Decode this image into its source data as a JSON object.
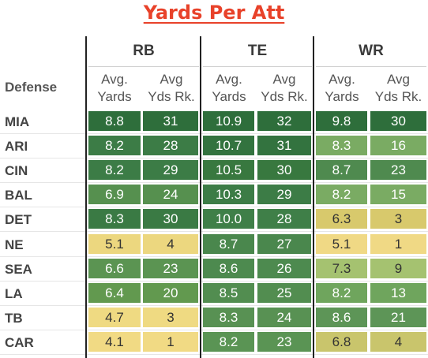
{
  "title": "Yards Per Att",
  "header": {
    "defense_label": "Defense",
    "groups": [
      "RB",
      "TE",
      "WR"
    ],
    "sub_top": [
      "Avg.",
      "Avg",
      "Avg.",
      "Avg",
      "Avg.",
      "Avg"
    ],
    "sub_bottom": [
      "Yards",
      "Yds Rk.",
      "Yards",
      "Yds Rk.",
      "Yards",
      "Yds Rk."
    ]
  },
  "rows": [
    {
      "team": "MIA",
      "vals": [
        "8.8",
        "31",
        "10.9",
        "32",
        "9.8",
        "30"
      ]
    },
    {
      "team": "ARI",
      "vals": [
        "8.2",
        "28",
        "10.7",
        "31",
        "8.3",
        "16"
      ]
    },
    {
      "team": "CIN",
      "vals": [
        "8.2",
        "29",
        "10.5",
        "30",
        "8.7",
        "23"
      ]
    },
    {
      "team": "BAL",
      "vals": [
        "6.9",
        "24",
        "10.3",
        "29",
        "8.2",
        "15"
      ]
    },
    {
      "team": "DET",
      "vals": [
        "8.3",
        "30",
        "10.0",
        "28",
        "6.3",
        "3"
      ]
    },
    {
      "team": "NE",
      "vals": [
        "5.1",
        "4",
        "8.7",
        "27",
        "5.1",
        "1"
      ]
    },
    {
      "team": "SEA",
      "vals": [
        "6.6",
        "23",
        "8.6",
        "26",
        "7.3",
        "9"
      ]
    },
    {
      "team": "LA",
      "vals": [
        "6.4",
        "20",
        "8.5",
        "25",
        "8.2",
        "13"
      ]
    },
    {
      "team": "TB",
      "vals": [
        "4.7",
        "3",
        "8.3",
        "24",
        "8.6",
        "21"
      ]
    },
    {
      "team": "CAR",
      "vals": [
        "4.1",
        "1",
        "8.2",
        "23",
        "6.8",
        "4"
      ]
    }
  ],
  "colors": {
    "title": "#e8422a",
    "rows": [
      [
        "#2e6e3b",
        "#2e6e3b",
        "#2e6e3b",
        "#2e6e3b",
        "#2e6e3b",
        "#2e6e3b"
      ],
      [
        "#3c7c46",
        "#3c7c46",
        "#33733f",
        "#33733f",
        "#7aab63",
        "#7aab63"
      ],
      [
        "#3c7c46",
        "#3c7c46",
        "#38783f",
        "#38783f",
        "#4f8a4f",
        "#4f8a4f"
      ],
      [
        "#56904f",
        "#56904f",
        "#3c7c46",
        "#3c7c46",
        "#7aab63",
        "#7aab63"
      ],
      [
        "#3a7a44",
        "#3a7a44",
        "#3f7f48",
        "#3f7f48",
        "#d8c96c",
        "#d8c96c"
      ],
      [
        "#ecd77f",
        "#ecd77f",
        "#4a874d",
        "#4a874d",
        "#f0d985",
        "#f0d985"
      ],
      [
        "#5b9452",
        "#5b9452",
        "#4d8a4f",
        "#4d8a4f",
        "#a5c270",
        "#a5c270"
      ],
      [
        "#62994f",
        "#62994f",
        "#528d50",
        "#528d50",
        "#6fa55d",
        "#6fa55d"
      ],
      [
        "#efda82",
        "#efda82",
        "#589153",
        "#589153",
        "#5d9557",
        "#5d9557"
      ],
      [
        "#f1da84",
        "#f1da84",
        "#5a9454",
        "#5a9454",
        "#c9c56c",
        "#c9c56c"
      ]
    ]
  }
}
